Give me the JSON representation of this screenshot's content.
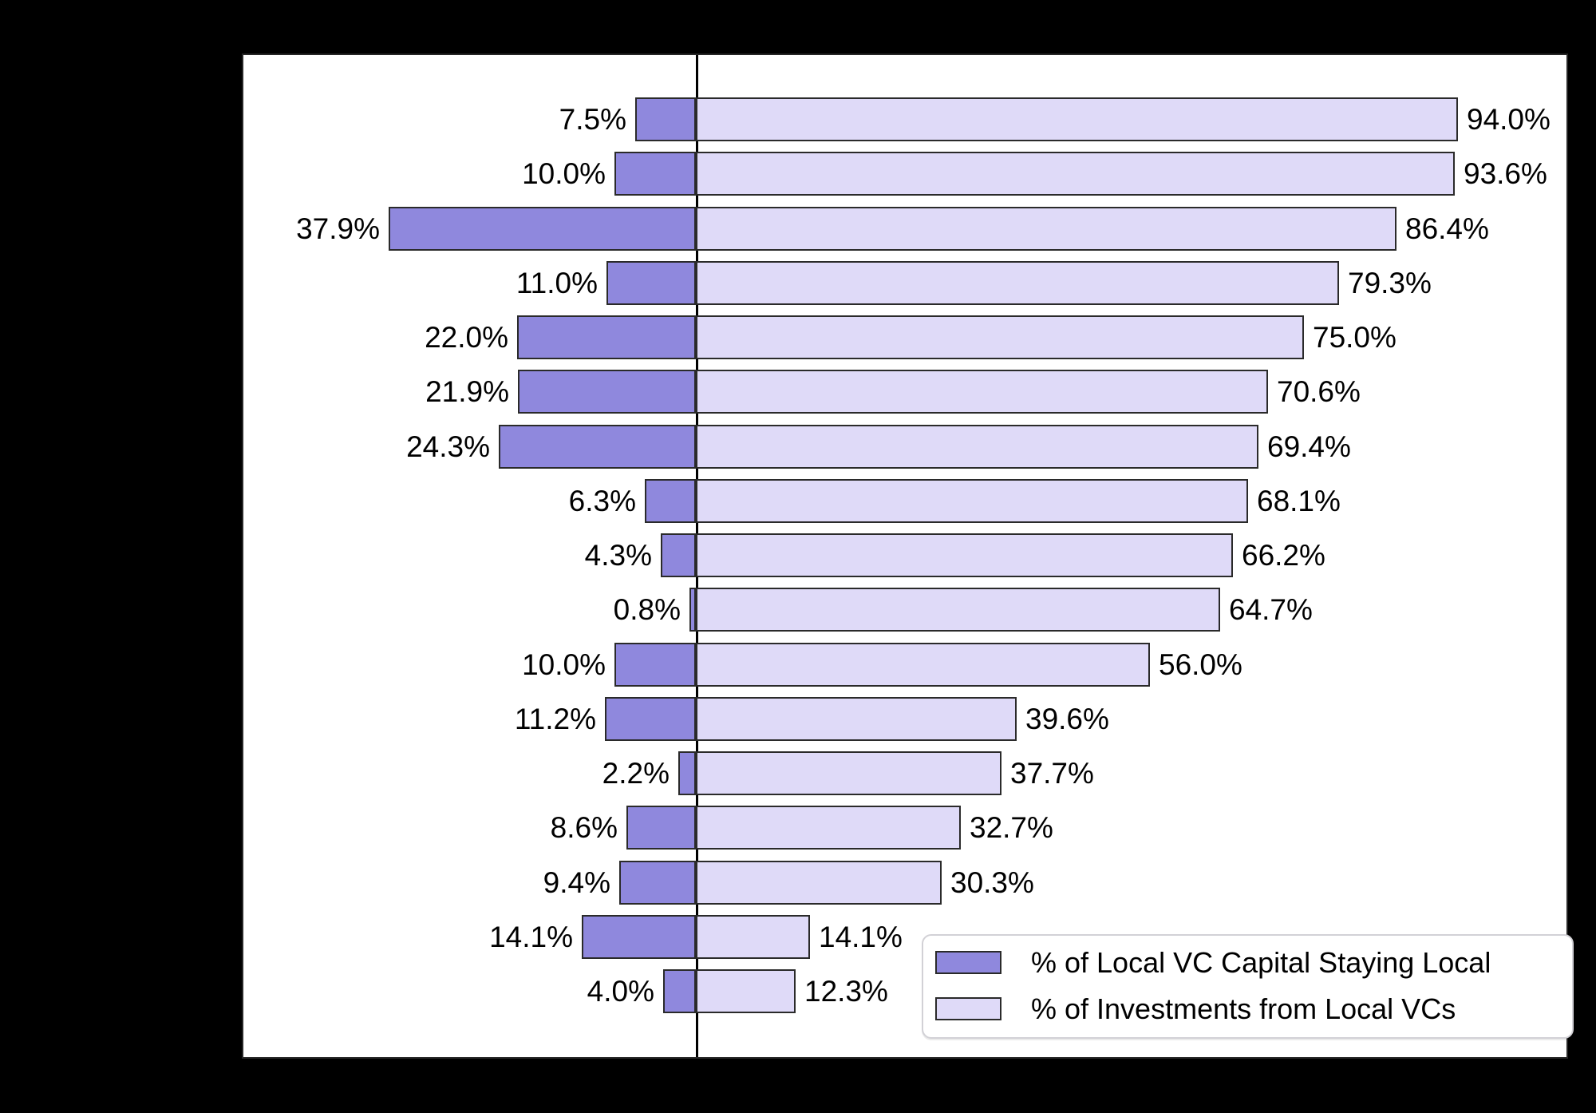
{
  "figure": {
    "title": "",
    "background_color": "#000000",
    "plot_background_color": "#ffffff",
    "axis_line_color": "#000000",
    "bar_edge_color": "#2a2a2a",
    "label_text_color": "#000000"
  },
  "chart_data": {
    "type": "bar",
    "subtype": "diverging-horizontal",
    "title": "",
    "xlabel": "",
    "ylabel": "",
    "rows": 17,
    "category_labels_visible": false,
    "center_axis_value": 0,
    "grid": false,
    "legend_position": "lower right",
    "series": [
      {
        "name": "% of Local VC Capital Staying Local",
        "side": "left",
        "color": "#8f88dd",
        "values": [
          7.5,
          10.0,
          37.9,
          11.0,
          22.0,
          21.9,
          24.3,
          6.3,
          4.3,
          0.8,
          10.0,
          11.2,
          2.2,
          8.6,
          9.4,
          14.1,
          4.0
        ]
      },
      {
        "name": "% of Investments from Local VCs",
        "side": "right",
        "color": "#dfdaf8",
        "values": [
          94.0,
          93.6,
          86.4,
          79.3,
          75.0,
          70.6,
          69.4,
          68.1,
          66.2,
          64.7,
          56.0,
          39.6,
          37.7,
          32.7,
          30.3,
          14.1,
          12.3
        ]
      }
    ],
    "left_value_labels": [
      "7.5%",
      "10.0%",
      "37.9%",
      "11.0%",
      "22.0%",
      "21.9%",
      "24.3%",
      "6.3%",
      "4.3%",
      "0.8%",
      "10.0%",
      "11.2%",
      "2.2%",
      "8.6%",
      "9.4%",
      "14.1%",
      "4.0%"
    ],
    "right_value_labels": [
      "94.0%",
      "93.6%",
      "86.4%",
      "79.3%",
      "75.0%",
      "70.6%",
      "69.4%",
      "68.1%",
      "66.2%",
      "64.7%",
      "56.0%",
      "39.6%",
      "37.7%",
      "32.7%",
      "30.3%",
      "14.1%",
      "12.3%"
    ]
  },
  "legend": {
    "entries": [
      {
        "label": "% of Local VC Capital Staying Local",
        "swatch_color": "#8f88dd"
      },
      {
        "label": "% of Investments from Local VCs",
        "swatch_color": "#dfdaf8"
      }
    ]
  }
}
